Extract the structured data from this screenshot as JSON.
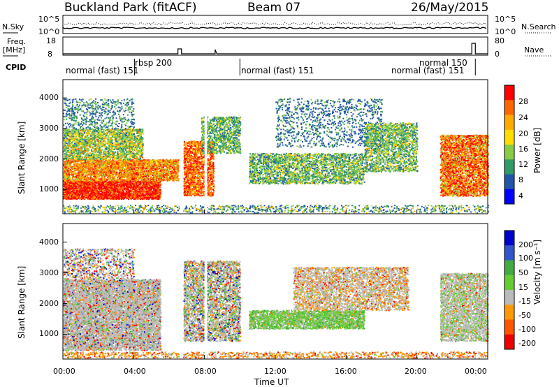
{
  "header": {
    "site": "Buckland Park (fitACF)",
    "beam": "Beam 07",
    "date": "26/May/2015"
  },
  "panels": {
    "nsky": {
      "left_label": "N.Sky",
      "right_label": "N.Search",
      "ticks": [
        "10^5",
        "10^0"
      ]
    },
    "freq": {
      "left_label_1": "Freq.",
      "left_label_2": "[MHz]",
      "left_ticks": [
        "18",
        "8"
      ],
      "right_label": "Nave",
      "right_ticks": [
        "80",
        "0"
      ]
    },
    "cpid": {
      "label": "CPID",
      "modes": [
        {
          "text": "normal (fast) 151",
          "t": 0.1
        },
        {
          "text": "rbsp 200",
          "t": 4.05
        },
        {
          "text": "normal (fast) 151",
          "t": 10.0
        },
        {
          "text": "normal 150",
          "t": 21.8
        },
        {
          "text": "normal (fast) 151",
          "t": 18.8
        }
      ]
    }
  },
  "chart_data": [
    {
      "type": "heatmap",
      "name": "power",
      "ylabel": "Slant Range [km]",
      "y_ticks": [
        1000,
        2000,
        3000,
        4000
      ],
      "ylim": [
        200,
        4600
      ],
      "xlim": [
        0,
        24
      ],
      "colorbar_label": "Power [dB]",
      "colorbar_ticks": [
        "28",
        "24",
        "20",
        "16",
        "12",
        "8",
        "4"
      ],
      "colors": [
        "#ff0000",
        "#ff6600",
        "#ffaa00",
        "#ffdd00",
        "#88cc44",
        "#339966",
        "#2255aa",
        "#0000ff"
      ]
    },
    {
      "type": "heatmap",
      "name": "velocity",
      "ylabel": "Slant Range [km]",
      "y_ticks": [
        1000,
        2000,
        3000,
        4000
      ],
      "ylim": [
        200,
        4600
      ],
      "xlim": [
        0,
        24
      ],
      "xlabel": "Time UT",
      "x_ticks": [
        "00:00",
        "04:00",
        "08:00",
        "12:00",
        "16:00",
        "20:00",
        "00:00"
      ],
      "colorbar_label": "Velocity [m s⁻¹]",
      "colorbar_ticks": [
        "200",
        "100",
        "50",
        "15",
        "-15",
        "-50",
        "-100",
        "-200"
      ],
      "colors": [
        "#0000cc",
        "#3355cc",
        "#44aa44",
        "#66cc33",
        "#bbbbbb",
        "#ff9900",
        "#ff5500",
        "#ee0000"
      ]
    }
  ]
}
